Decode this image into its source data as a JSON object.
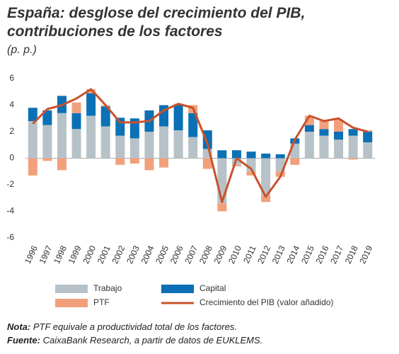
{
  "chart_data": {
    "type": "bar",
    "stacked": true,
    "title": "España: desglose del crecimiento del PIB, contribuciones de los factores",
    "subtitle": "(p. p.)",
    "categories": [
      "1996",
      "1997",
      "1998",
      "1999",
      "2000",
      "2001",
      "2002",
      "2003",
      "2004",
      "2005",
      "2006",
      "2007",
      "2008",
      "2009",
      "2010",
      "2011",
      "2012",
      "2013",
      "2014",
      "2015",
      "2016",
      "2017",
      "2018",
      "2019"
    ],
    "series": [
      {
        "name": "Trabajo",
        "color": "#b7c2c8",
        "values": [
          2.8,
          2.5,
          3.4,
          2.2,
          3.2,
          2.4,
          1.7,
          1.5,
          2.0,
          2.4,
          2.1,
          1.6,
          0.7,
          -3.4,
          -0.5,
          -1.0,
          -2.8,
          -1.0,
          1.1,
          2.0,
          1.7,
          1.4,
          1.7,
          1.2
        ]
      },
      {
        "name": "Capital",
        "color": "#0b70b5",
        "values": [
          1.0,
          1.1,
          1.3,
          1.2,
          1.7,
          1.5,
          1.35,
          1.5,
          1.6,
          1.6,
          1.9,
          1.8,
          1.4,
          0.6,
          0.6,
          0.5,
          0.35,
          0.3,
          0.4,
          0.5,
          0.5,
          0.6,
          0.5,
          0.8
        ]
      },
      {
        "name": "PTF",
        "color": "#f2a07c",
        "values": [
          -1.3,
          -0.2,
          -0.9,
          0.8,
          0.3,
          0.1,
          -0.5,
          -0.4,
          -0.9,
          -0.7,
          0.1,
          0.6,
          -0.8,
          -0.6,
          -0.1,
          -0.3,
          -0.5,
          -0.4,
          -0.5,
          0.7,
          0.6,
          0.9,
          -0.1,
          0.1
        ]
      },
      {
        "name": "Crecimiento del PIB (valor añadido)",
        "type": "line",
        "color": "#c8522b",
        "values": [
          2.6,
          3.7,
          4.0,
          4.5,
          5.2,
          4.0,
          2.7,
          2.7,
          2.8,
          3.6,
          4.1,
          3.8,
          1.1,
          -3.3,
          0.0,
          -0.8,
          -2.9,
          -1.4,
          1.4,
          3.2,
          2.8,
          3.0,
          2.3,
          2.0
        ]
      }
    ],
    "ylim": [
      -6,
      6
    ],
    "yticks": [
      -6,
      -4,
      -2,
      0,
      2,
      4,
      6
    ],
    "grid": false,
    "notes": [
      {
        "label": "Nota:",
        "text": "PTF equivale a productividad total de los factores."
      },
      {
        "label": "Fuente:",
        "text": "CaixaBank Research, a partir de datos de EUKLEMS."
      }
    ]
  }
}
